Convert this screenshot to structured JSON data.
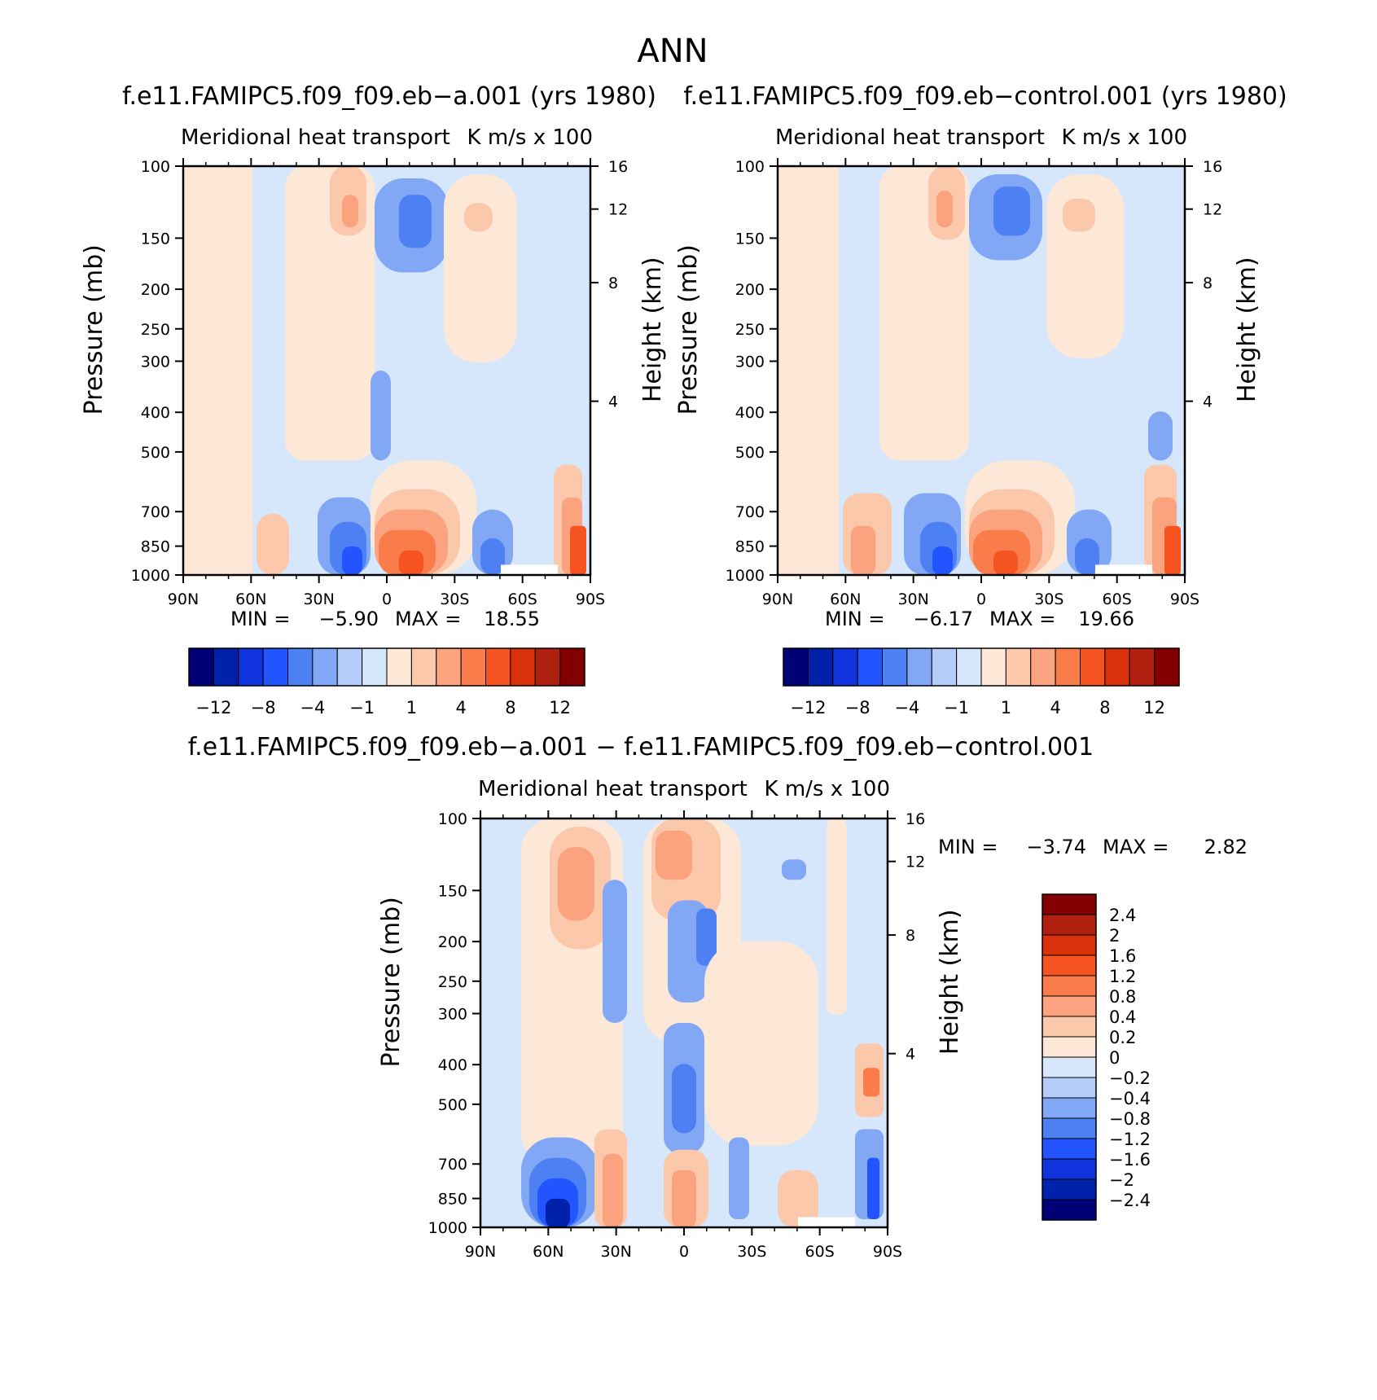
{
  "figure_title": "ANN",
  "colors": {
    "neg6": "#000077",
    "neg5": "#0022aa",
    "neg4": "#1133dd",
    "neg3": "#2255ff",
    "neg2": "#4d80f2",
    "neg1": "#82a8f5",
    "neg0b": "#b4ccfa",
    "neg0": "#d6e6fb",
    "pos0": "#fde8d8",
    "pos1": "#fcc8ac",
    "pos2": "#fba37f",
    "pos3": "#fa7c4b",
    "pos4": "#f5531f",
    "pos5": "#d9320a",
    "pos6": "#b0200e",
    "pos7": "#820000"
  },
  "chart_data": [
    {
      "type": "heatmap",
      "panel": "top-left",
      "title": "f.e11.FAMIPC5.f09_f09.eb−a.001 (yrs 1980)",
      "subtitle_left": "Meridional heat transport",
      "subtitle_right": "K m/s x 100",
      "ylabel": "Pressure (mb)",
      "ylabel_right": "Height (km)",
      "x_ticks": [
        "90N",
        "60N",
        "30N",
        "0",
        "30S",
        "60S",
        "90S"
      ],
      "y_ticks": [
        "100",
        "150",
        "200",
        "250",
        "300",
        "400",
        "500",
        "700",
        "850",
        "1000"
      ],
      "y_ticks_right": [
        "16",
        "12",
        "8",
        "4"
      ],
      "min_label": "MIN =",
      "min_value": "−5.90",
      "max_label": "MAX =",
      "max_value": "18.55",
      "colorbar_labels": [
        "−12",
        "−8",
        "−4",
        "−1",
        "1",
        "4",
        "8",
        "12"
      ],
      "xlim": [
        -90,
        90
      ],
      "ylim": [
        1000,
        100
      ]
    },
    {
      "type": "heatmap",
      "panel": "top-right",
      "title": "f.e11.FAMIPC5.f09_f09.eb−control.001 (yrs 1980)",
      "subtitle_left": "Meridional heat transport",
      "subtitle_right": "K m/s x 100",
      "ylabel": "Pressure (mb)",
      "ylabel_right": "Height (km)",
      "x_ticks": [
        "90N",
        "60N",
        "30N",
        "0",
        "30S",
        "60S",
        "90S"
      ],
      "y_ticks": [
        "100",
        "150",
        "200",
        "250",
        "300",
        "400",
        "500",
        "700",
        "850",
        "1000"
      ],
      "y_ticks_right": [
        "16",
        "12",
        "8",
        "4"
      ],
      "min_label": "MIN =",
      "min_value": "−6.17",
      "max_label": "MAX =",
      "max_value": "19.66",
      "colorbar_labels": [
        "−12",
        "−8",
        "−4",
        "−1",
        "1",
        "4",
        "8",
        "12"
      ],
      "xlim": [
        -90,
        90
      ],
      "ylim": [
        1000,
        100
      ]
    },
    {
      "type": "heatmap",
      "panel": "bottom",
      "title": "f.e11.FAMIPC5.f09_f09.eb−a.001 − f.e11.FAMIPC5.f09_f09.eb−control.001",
      "subtitle_left": "Meridional heat transport",
      "subtitle_right": "K m/s x 100",
      "ylabel": "Pressure (mb)",
      "ylabel_right": "Height (km)",
      "x_ticks": [
        "90N",
        "60N",
        "30N",
        "0",
        "30S",
        "60S",
        "90S"
      ],
      "y_ticks": [
        "100",
        "150",
        "200",
        "250",
        "300",
        "400",
        "500",
        "700",
        "850",
        "1000"
      ],
      "y_ticks_right": [
        "16",
        "12",
        "8",
        "4"
      ],
      "min_label": "MIN =",
      "min_value": "−3.74",
      "max_label": "MAX =",
      "max_value": "2.82",
      "colorbar_labels": [
        "2.4",
        "2",
        "1.6",
        "1.2",
        "0.8",
        "0.4",
        "0.2",
        "0",
        "−0.2",
        "−0.4",
        "−0.8",
        "−1.2",
        "−1.6",
        "−2",
        "−2.4"
      ],
      "xlim": [
        -90,
        90
      ],
      "ylim": [
        1000,
        100
      ]
    }
  ]
}
